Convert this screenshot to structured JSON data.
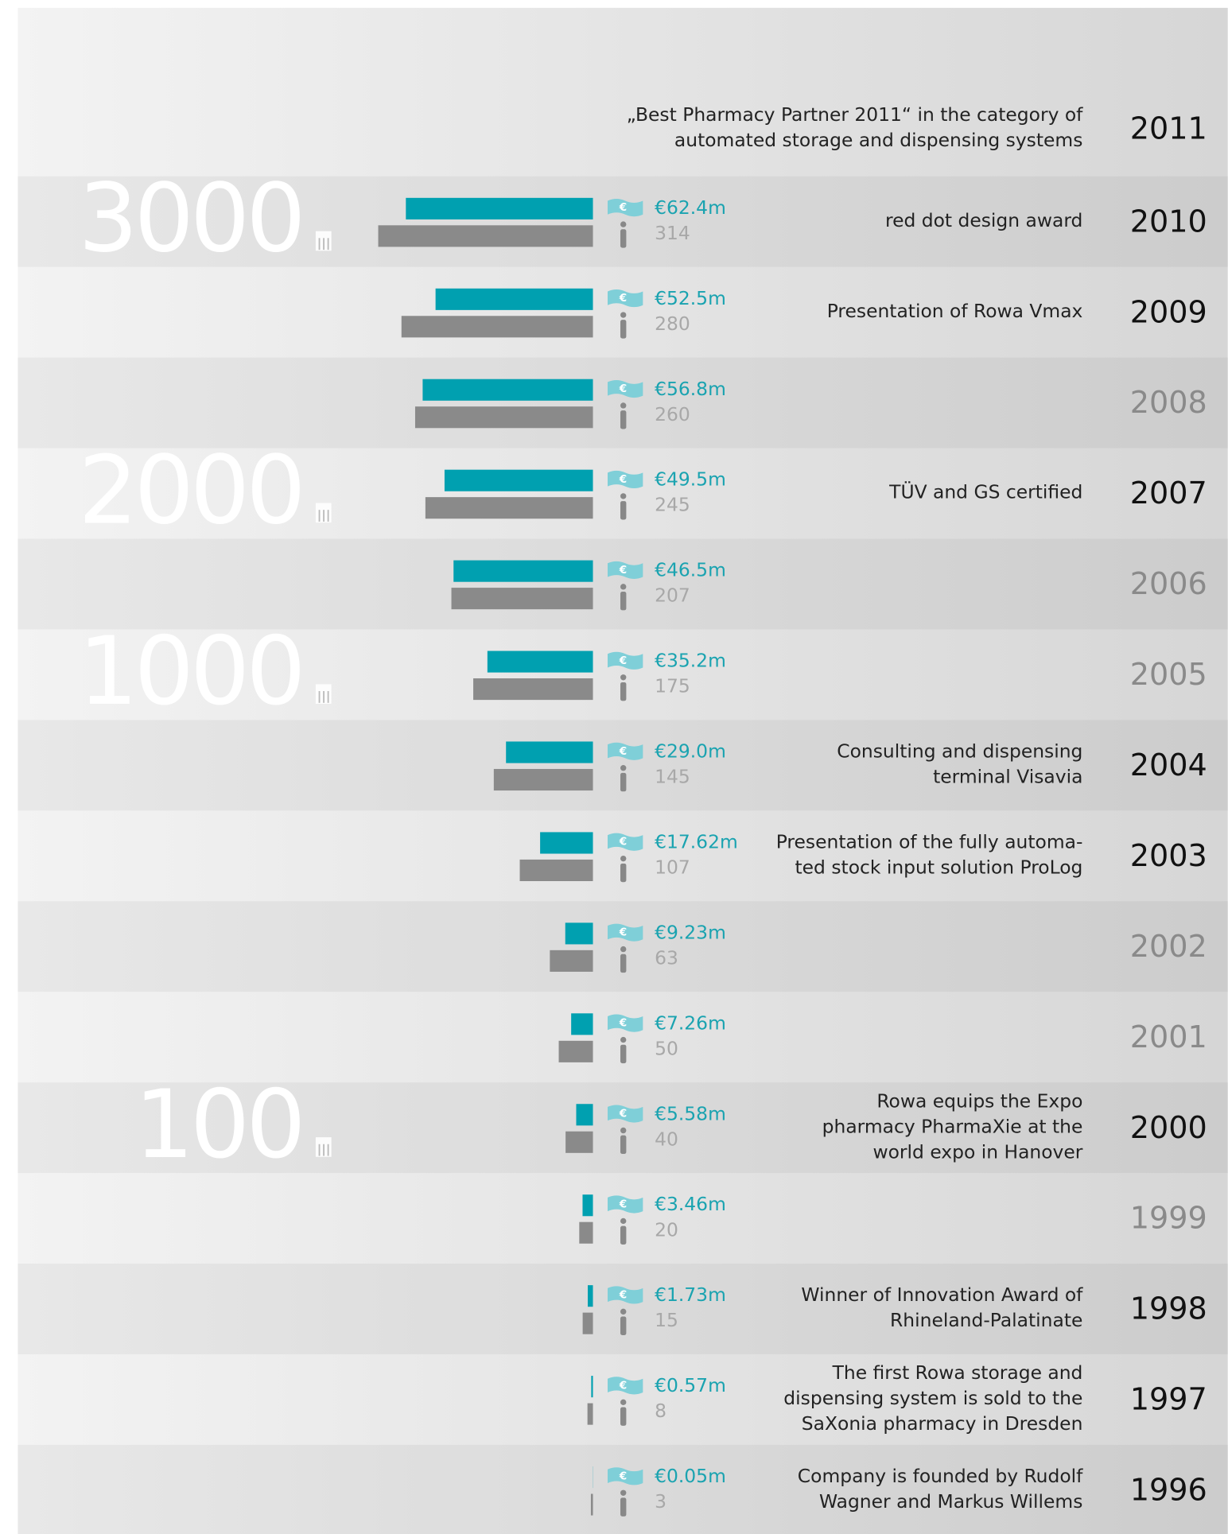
{
  "chart_data": {
    "type": "bar",
    "categories": [
      "2011",
      "2010",
      "2009",
      "2008",
      "2007",
      "2006",
      "2005",
      "2004",
      "2003",
      "2002",
      "2001",
      "2000",
      "1999",
      "1998",
      "1997",
      "1996"
    ],
    "series": [
      {
        "name": "Revenue",
        "color": "#00a0b0",
        "values": [
          null,
          62.4,
          52.5,
          56.8,
          49.5,
          46.5,
          35.2,
          29.0,
          17.62,
          9.23,
          7.26,
          5.58,
          3.46,
          1.73,
          0.57,
          0.05
        ],
        "value_labels": [
          null,
          "€62.4m",
          "€52.5m",
          "€56.8m",
          "€49.5m",
          "€46.5m",
          "€35.2m",
          "€29.0m",
          "€17.62m",
          "€9.23m",
          "€7.26m",
          "€5.58m",
          "€3.46m",
          "€1.73m",
          "€0.57m",
          "€0.05m"
        ]
      },
      {
        "name": "Employees",
        "color": "#8a8a8a",
        "values": [
          null,
          314,
          280,
          260,
          245,
          207,
          175,
          145,
          107,
          63,
          50,
          40,
          20,
          15,
          8,
          3
        ]
      }
    ],
    "milestones": [
      [
        "„Best Pharmacy Partner 2011“ in the category of",
        "automated storage and dispensing systems"
      ],
      [
        "red dot design award"
      ],
      [
        "Presentation of Rowa Vmax"
      ],
      null,
      [
        "TÜV and GS certified"
      ],
      null,
      null,
      [
        "Consulting and dispensing",
        "terminal Visavia"
      ],
      [
        "Presentation of the fully automa-",
        "ted stock input solution ProLog"
      ],
      null,
      null,
      [
        "Rowa equips the Expo",
        "pharmacy PharmaXie at the",
        "world expo in Hanover"
      ],
      null,
      [
        "Winner of Innovation Award of",
        "Rhineland-Palatinate"
      ],
      [
        "The first Rowa storage and",
        "dispensing system is sold to the",
        "SaXonia pharmacy in Dresden"
      ],
      [
        "Company is founded by Rudolf",
        "Wagner and Markus Willems"
      ]
    ],
    "installations": [
      null,
      3000,
      null,
      null,
      2000,
      null,
      1000,
      null,
      null,
      null,
      null,
      100,
      null,
      null,
      null,
      null
    ]
  }
}
